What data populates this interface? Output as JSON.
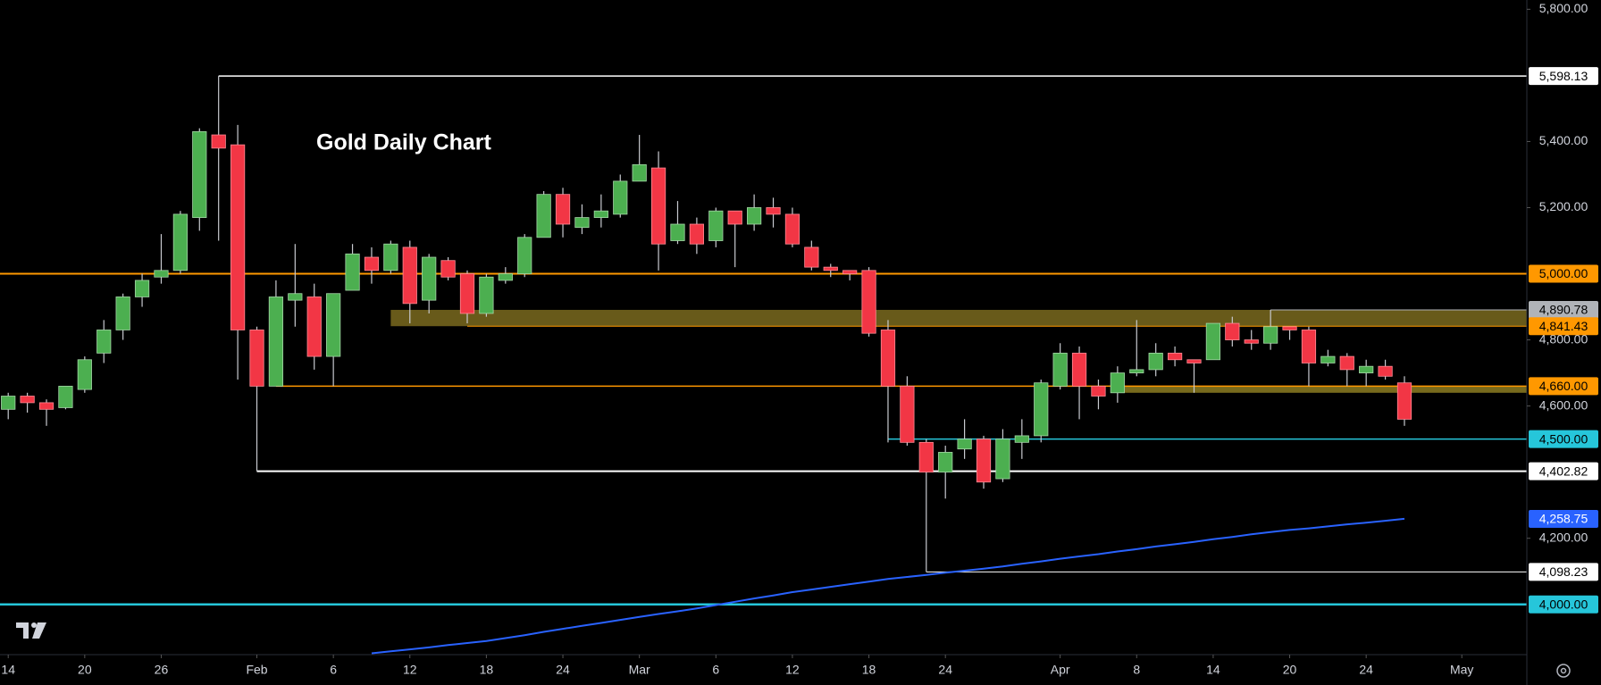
{
  "chart_data": {
    "type": "candlestick",
    "title": "Gold Daily Chart",
    "up_color": "#4caf50",
    "down_color": "#f23645",
    "wick_color": "#c8cad0",
    "xlim": [
      -0.43,
      79.4
    ],
    "ylim": [
      3848,
      5828
    ],
    "xticks": [
      {
        "value": 0,
        "label": "14"
      },
      {
        "value": 4,
        "label": "20"
      },
      {
        "value": 8,
        "label": "26"
      },
      {
        "value": 13,
        "label": "Feb"
      },
      {
        "value": 17,
        "label": "6"
      },
      {
        "value": 21,
        "label": "12"
      },
      {
        "value": 25,
        "label": "18"
      },
      {
        "value": 29,
        "label": "24"
      },
      {
        "value": 33,
        "label": "Mar"
      },
      {
        "value": 37,
        "label": "6"
      },
      {
        "value": 41,
        "label": "12"
      },
      {
        "value": 45,
        "label": "18"
      },
      {
        "value": 49,
        "label": "24"
      },
      {
        "value": 55,
        "label": "Apr"
      },
      {
        "value": 59,
        "label": "8"
      },
      {
        "value": 63,
        "label": "14"
      },
      {
        "value": 67,
        "label": "20"
      },
      {
        "value": 71,
        "label": "24"
      },
      {
        "value": 76,
        "label": "May"
      }
    ],
    "yticks": [
      {
        "value": 5800,
        "label": "5,800.00"
      },
      {
        "value": 5400,
        "label": "5,400.00"
      },
      {
        "value": 5200,
        "label": "5,200.00"
      },
      {
        "value": 4800,
        "label": "4,800.00"
      },
      {
        "value": 4600,
        "label": "4,600.00"
      },
      {
        "value": 4200,
        "label": "4,200.00"
      }
    ],
    "open": [
      4590,
      4630,
      4610,
      4595,
      4650,
      4760,
      4830,
      4930,
      4990,
      5010,
      5170,
      5420,
      5390,
      4830,
      4660,
      4920,
      4930,
      4750,
      4950,
      5050,
      5010,
      5080,
      4920,
      5040,
      5000,
      4880,
      4980,
      5000,
      5110,
      5240,
      5140,
      5170,
      5180,
      5280,
      5320,
      5100,
      5150,
      5100,
      5190,
      5150,
      5200,
      5180,
      5080,
      5020,
      5010,
      5010,
      4830,
      4660,
      4490,
      4400,
      4470,
      4500,
      4380,
      4490,
      4510,
      4660,
      4760,
      4660,
      4640,
      4700,
      4710,
      4760,
      4740,
      4740,
      4850,
      4800,
      4790,
      4840,
      4830,
      4730,
      4750,
      4700,
      4720,
      4670
    ],
    "high": [
      4640,
      4640,
      4620,
      4660,
      4750,
      4860,
      4940,
      5000,
      5120,
      5190,
      5440,
      5598.13,
      5450,
      4840,
      4980,
      5090,
      4970,
      4940,
      5090,
      5080,
      5100,
      5100,
      5060,
      5050,
      5010,
      5000,
      5020,
      5120,
      5250,
      5260,
      5210,
      5240,
      5300,
      5420,
      5370,
      5220,
      5170,
      5200,
      5190,
      5240,
      5230,
      5200,
      5100,
      5030,
      5010,
      5020,
      4860,
      4690,
      4500,
      4480,
      4560,
      4510,
      4530,
      4560,
      4680,
      4790,
      4780,
      4680,
      4720,
      4860,
      4790,
      4780,
      4740,
      4850,
      4870,
      4830,
      4890.78,
      4840,
      4840,
      4770,
      4760,
      4740,
      4740,
      4690
    ],
    "low": [
      4560,
      4580,
      4540,
      4590,
      4640,
      4730,
      4800,
      4900,
      4970,
      5000,
      5130,
      5100,
      4680,
      4402.82,
      4660,
      4840,
      4710,
      4660,
      4950,
      4970,
      5000,
      4850,
      4880,
      4980,
      4850,
      4870,
      4970,
      4990,
      5110,
      5110,
      5120,
      5140,
      5170,
      5280,
      5010,
      5090,
      5060,
      5080,
      5020,
      5130,
      5140,
      5080,
      5010,
      4990,
      4980,
      4810,
      4490,
      4480,
      4098.23,
      4320,
      4440,
      4350,
      4370,
      4440,
      4490,
      4650,
      4560,
      4590,
      4610,
      4690,
      4690,
      4720,
      4640,
      4740,
      4780,
      4770,
      4770,
      4800,
      4660,
      4720,
      4660,
      4660,
      4680,
      4540
    ],
    "close": [
      4630,
      4610,
      4590,
      4660,
      4740,
      4830,
      4930,
      4980,
      5010,
      5180,
      5430,
      5380,
      4830,
      4660,
      4930,
      4940,
      4750,
      4940,
      5060,
      5010,
      5090,
      4910,
      5050,
      4990,
      4880,
      4990,
      5000,
      5110,
      5240,
      5150,
      5170,
      5190,
      5280,
      5330,
      5090,
      5150,
      5090,
      5190,
      5150,
      5200,
      5180,
      5090,
      5020,
      5010,
      5000,
      4820,
      4660,
      4490,
      4400,
      4460,
      4500,
      4370,
      4500,
      4510,
      4670,
      4760,
      4660,
      4630,
      4700,
      4710,
      4760,
      4740,
      4730,
      4850,
      4800,
      4790,
      4840,
      4830,
      4730,
      4750,
      4710,
      4720,
      4690,
      4560
    ],
    "moving_average": {
      "color": "#2962ff",
      "x_start": 19,
      "values": [
        3852,
        3858,
        3864,
        3870,
        3877,
        3883,
        3889,
        3898,
        3907,
        3917,
        3926,
        3935,
        3944,
        3953,
        3962,
        3971,
        3979,
        3988,
        3998,
        4008,
        4018,
        4027,
        4037,
        4045,
        4053,
        4061,
        4069,
        4077,
        4083,
        4089,
        4096,
        4102,
        4108,
        4115,
        4123,
        4130,
        4138,
        4145,
        4152,
        4160,
        4167,
        4175,
        4182,
        4189,
        4197,
        4204,
        4212,
        4219,
        4225,
        4230,
        4236,
        4242,
        4247,
        4253,
        4258.75
      ],
      "value_label": "4,258.75"
    },
    "zones": [
      {
        "range": [
          4841.43,
          4890.78
        ],
        "x_start": 20,
        "color": "#7a6a1e"
      },
      {
        "range": [
          4640,
          4660
        ],
        "x_start": 58,
        "color": "#8c7c22"
      }
    ],
    "levels": [
      {
        "value": 5598.13,
        "label": "5,598.13",
        "color": "#ffffff",
        "x_start": 11,
        "text_color": "#000000",
        "width": 1.5
      },
      {
        "value": 5000,
        "label": "5,000.00",
        "color": "#ff9800",
        "x_start": -0.43,
        "text_color": "#000000",
        "width": 2
      },
      {
        "value": 4890.78,
        "label": "4,890.78",
        "color": "#b0b3b8",
        "x_start": 66,
        "text_color": "#000000",
        "width": 1
      },
      {
        "value": 4841.43,
        "label": "4,841.43",
        "color": "#ff9800",
        "x_start": 24,
        "text_color": "#000000",
        "width": 1
      },
      {
        "value": 4660,
        "label": "4,660.00",
        "color": "#ff9800",
        "x_start": 14,
        "text_color": "#000000",
        "width": 1.5
      },
      {
        "value": 4500,
        "label": "4,500.00",
        "color": "#26c6da",
        "x_start": 46,
        "text_color": "#000000",
        "width": 1.5
      },
      {
        "value": 4402.82,
        "label": "4,402.82",
        "color": "#ffffff",
        "x_start": 13,
        "text_color": "#000000",
        "width": 2
      },
      {
        "value": 4098.23,
        "label": "4,098.23",
        "color": "#ffffff",
        "x_start": 48,
        "text_color": "#000000",
        "width": 1
      },
      {
        "value": 4000,
        "label": "4,000.00",
        "color": "#26c6da",
        "x_start": -0.43,
        "text_color": "#000000",
        "width": 2.5
      }
    ]
  }
}
